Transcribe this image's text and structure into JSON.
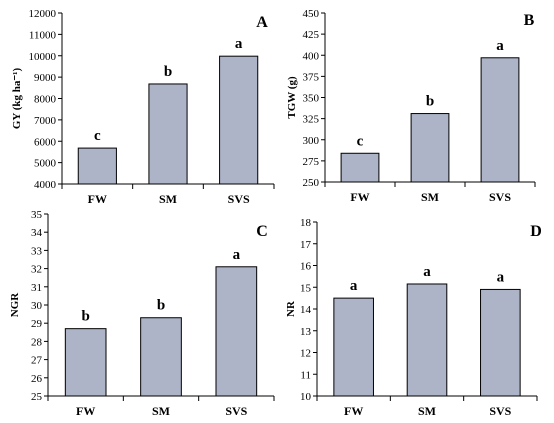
{
  "chart_data": [
    {
      "type": "bar",
      "panel_label": "A",
      "ylabel": "GY (kg ha⁻¹)",
      "categories": [
        "FW",
        "SM",
        "SVS"
      ],
      "values": [
        5680,
        8680,
        9980
      ],
      "significance": [
        "c",
        "b",
        "a"
      ],
      "ylim": [
        4000,
        12000
      ],
      "yticks": [
        "4000",
        "5000",
        "6000",
        "7000",
        "8000",
        "9000",
        "10000",
        "11000",
        "12000"
      ],
      "bar_color": "#aeb4c8",
      "grid": false
    },
    {
      "type": "bar",
      "panel_label": "B",
      "ylabel": "TGW (g)",
      "categories": [
        "FW",
        "SM",
        "SVS"
      ],
      "values": [
        284,
        331,
        397
      ],
      "significance": [
        "c",
        "b",
        "a"
      ],
      "ylim": [
        250,
        450
      ],
      "yticks": [
        "250",
        "275",
        "300",
        "325",
        "350",
        "375",
        "400",
        "425",
        "450"
      ],
      "bar_color": "#aeb4c8",
      "grid": false
    },
    {
      "type": "bar",
      "panel_label": "C",
      "ylabel": "NGR",
      "categories": [
        "FW",
        "SM",
        "SVS"
      ],
      "values": [
        28.7,
        29.3,
        32.1
      ],
      "significance": [
        "b",
        "b",
        "a"
      ],
      "ylim": [
        25,
        35
      ],
      "yticks": [
        "25",
        "26",
        "27",
        "28",
        "29",
        "30",
        "31",
        "32",
        "33",
        "34",
        "35"
      ],
      "bar_color": "#aeb4c8",
      "grid": false
    },
    {
      "type": "bar",
      "panel_label": "D",
      "ylabel": "NR",
      "categories": [
        "FW",
        "SM",
        "SVS"
      ],
      "values": [
        14.5,
        15.15,
        14.9
      ],
      "significance": [
        "a",
        "a",
        "a"
      ],
      "ylim": [
        10,
        18
      ],
      "yticks": [
        "10",
        "11",
        "12",
        "13",
        "14",
        "15",
        "16",
        "17",
        "18"
      ],
      "bar_color": "#aeb4c8",
      "grid": false
    }
  ]
}
